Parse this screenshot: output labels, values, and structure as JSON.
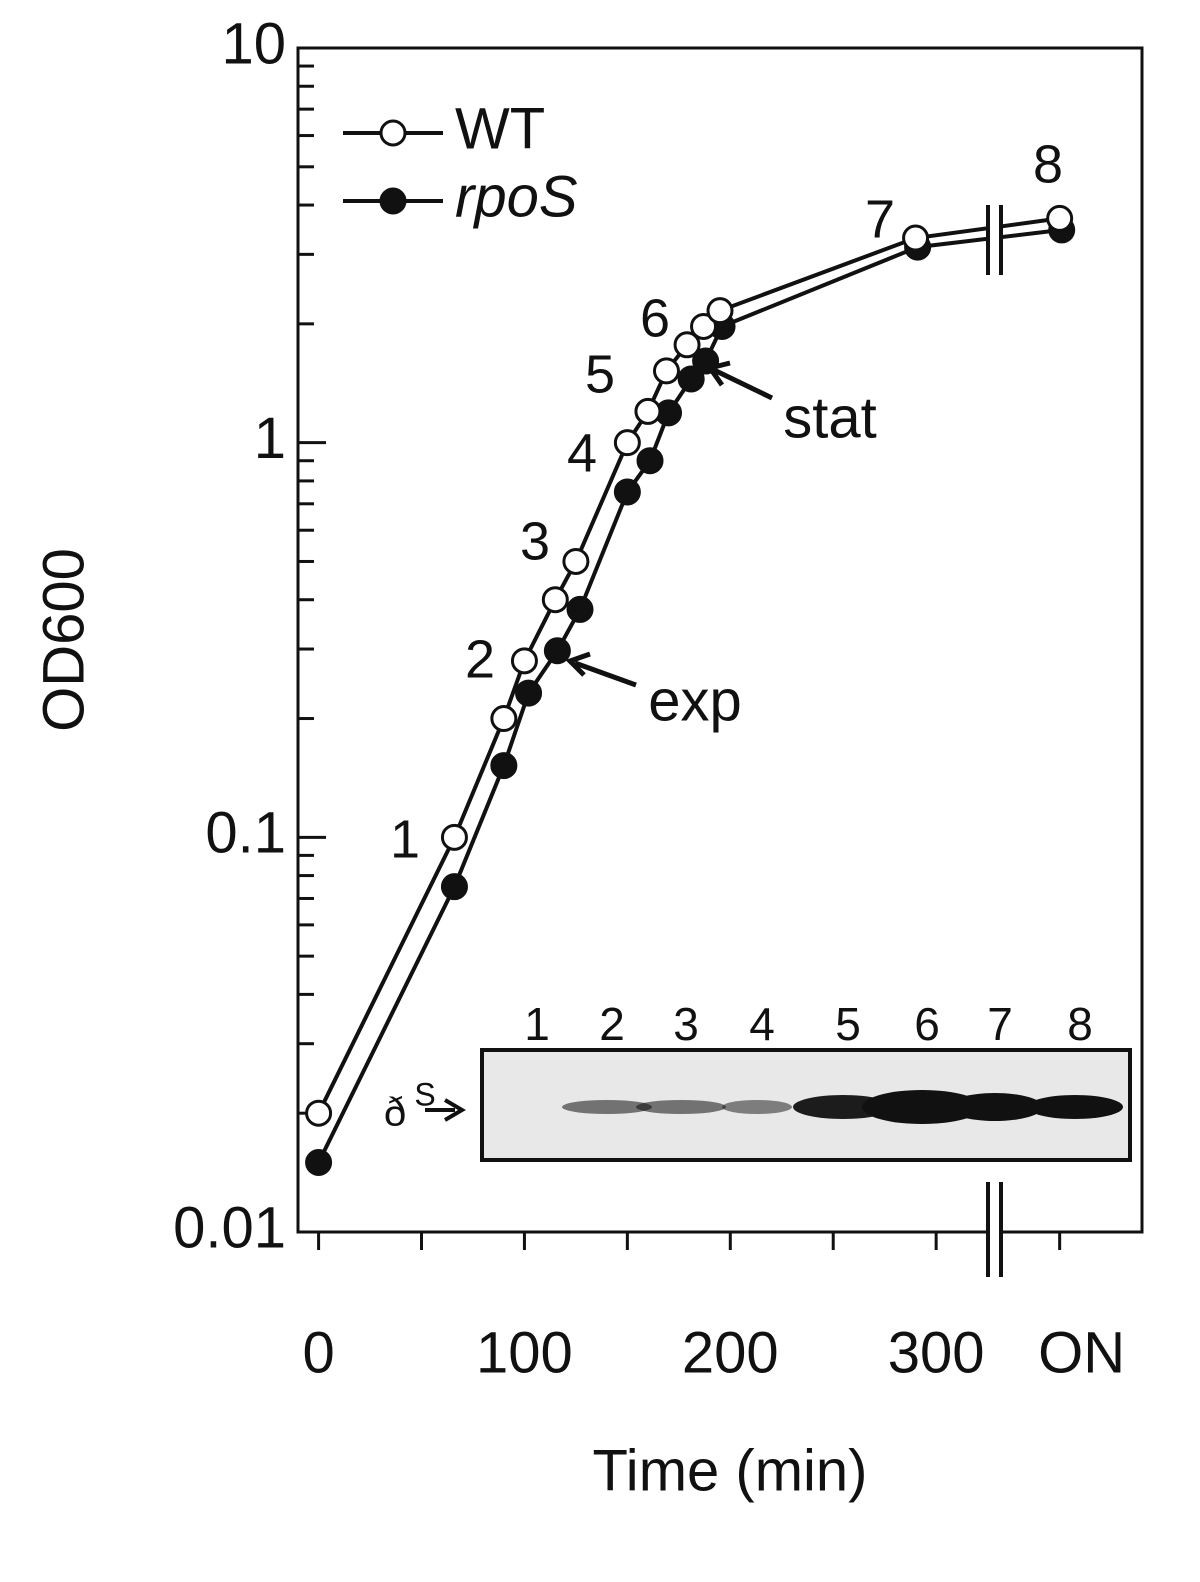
{
  "chart_data": {
    "type": "line",
    "xlabel": "Time (min)",
    "ylabel": "OD600",
    "xlim": [
      -10,
      400
    ],
    "ylim": [
      0.01,
      10
    ],
    "ylog": true,
    "xticks": [
      0,
      100,
      200,
      300,
      {
        "value": 360,
        "label": "ON"
      }
    ],
    "xminorticks": [
      50,
      150,
      250
    ],
    "yticks": [
      0.01,
      0.1,
      1,
      10
    ],
    "yminorticks": [
      0.02,
      0.03,
      0.04,
      0.05,
      0.06,
      0.07,
      0.08,
      0.09,
      0.2,
      0.3,
      0.4,
      0.5,
      0.6,
      0.7,
      0.8,
      0.9,
      2,
      3,
      4,
      5,
      6,
      7,
      8,
      9
    ],
    "legend": "upper left",
    "series": [
      {
        "name": "WT",
        "color": "#ffffff",
        "x": [
          0,
          66,
          90,
          100,
          115,
          125,
          150,
          160,
          169,
          179,
          187,
          195,
          290,
          360
        ],
        "values": [
          0.02,
          0.1,
          0.2,
          0.28,
          0.4,
          0.5,
          1.0,
          1.2,
          1.52,
          1.77,
          1.97,
          2.16,
          3.3,
          3.7
        ]
      },
      {
        "name": "rpoS",
        "color": "#111111",
        "x": [
          0,
          66,
          90,
          102,
          116,
          127,
          150,
          161,
          170,
          181,
          188,
          196,
          291,
          361
        ],
        "values": [
          0.015,
          0.075,
          0.152,
          0.232,
          0.297,
          0.378,
          0.75,
          0.9,
          1.19,
          1.45,
          1.61,
          1.97,
          3.13,
          3.46
        ]
      }
    ],
    "point_labels": [
      "1",
      "2",
      "3",
      "4",
      "5",
      "6",
      "7",
      "8"
    ],
    "annotations": [
      "exp",
      "stat"
    ],
    "inset": {
      "lanes": [
        "1",
        "2",
        "3",
        "4",
        "5",
        "6",
        "7",
        "8"
      ],
      "band_label": "ð",
      "band_label_sup": "S"
    }
  }
}
